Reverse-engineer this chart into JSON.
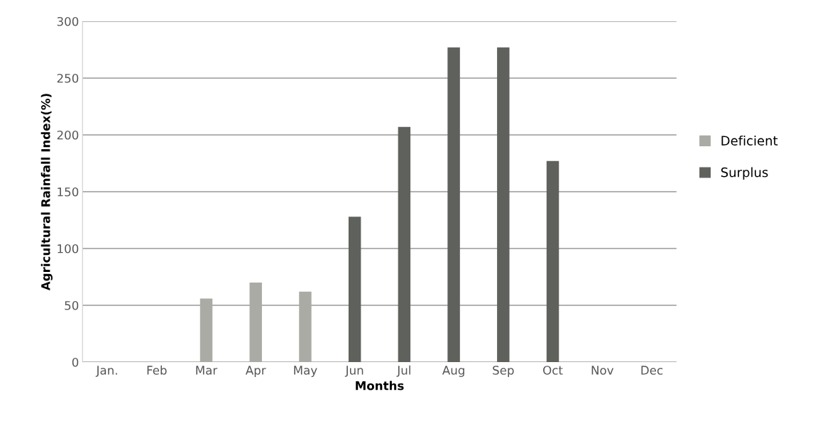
{
  "chart_data": {
    "type": "bar",
    "xlabel": "Months",
    "ylabel": "Agricultural Rainfall Index(%)",
    "categories": [
      "Jan.",
      "Feb",
      "Mar",
      "Apr",
      "May",
      "Jun",
      "Jul",
      "Aug",
      "Sep",
      "Oct",
      "Nov",
      "Dec"
    ],
    "stacked": true,
    "series": [
      {
        "name": "Deficient",
        "color": "#a9aba4",
        "values": [
          null,
          null,
          56,
          70,
          62,
          null,
          null,
          null,
          null,
          null,
          null,
          null
        ]
      },
      {
        "name": "Surplus",
        "color": "#5f625c",
        "values": [
          null,
          null,
          null,
          null,
          null,
          128,
          207,
          277,
          277,
          177,
          null,
          null
        ]
      }
    ],
    "ylim": [
      0,
      300
    ],
    "yticks": [
      0,
      50,
      100,
      150,
      200,
      250,
      300
    ],
    "grid": "y",
    "legend": "right"
  }
}
